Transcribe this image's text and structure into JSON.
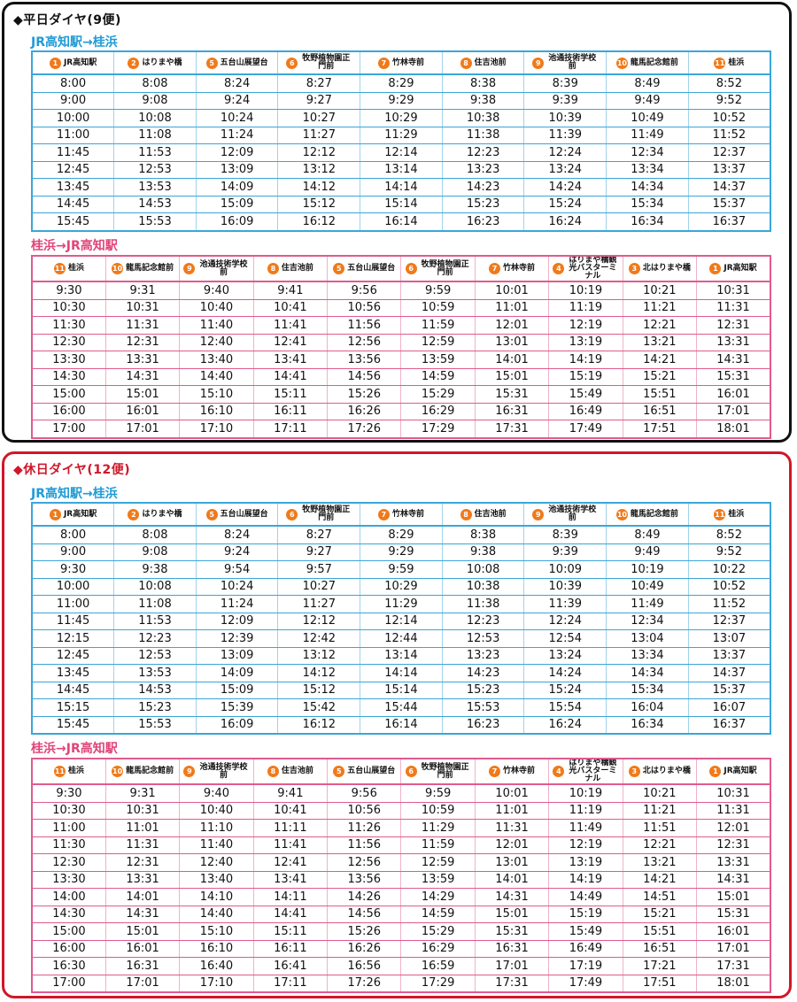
{
  "weekday": {
    "title": "◆平日ダイヤ(9便)",
    "outbound": {
      "title": "JR高知駅→桂浜",
      "stops": [
        {
          "num": "1",
          "name": "JR高知駅"
        },
        {
          "num": "2",
          "name": "はりまや橋"
        },
        {
          "num": "5",
          "name": "五台山展望台"
        },
        {
          "num": "6",
          "name": "牧野植物園正門前"
        },
        {
          "num": "7",
          "name": "竹林寺前"
        },
        {
          "num": "8",
          "name": "住吉池前"
        },
        {
          "num": "9",
          "name": "池通技術学校前"
        },
        {
          "num": "10",
          "name": "龍馬記念館前"
        },
        {
          "num": "11",
          "name": "桂浜"
        }
      ],
      "rows": [
        [
          "8:00",
          "8:08",
          "8:24",
          "8:27",
          "8:29",
          "8:38",
          "8:39",
          "8:49",
          "8:52"
        ],
        [
          "9:00",
          "9:08",
          "9:24",
          "9:27",
          "9:29",
          "9:38",
          "9:39",
          "9:49",
          "9:52"
        ],
        [
          "10:00",
          "10:08",
          "10:24",
          "10:27",
          "10:29",
          "10:38",
          "10:39",
          "10:49",
          "10:52"
        ],
        [
          "11:00",
          "11:08",
          "11:24",
          "11:27",
          "11:29",
          "11:38",
          "11:39",
          "11:49",
          "11:52"
        ],
        [
          "11:45",
          "11:53",
          "12:09",
          "12:12",
          "12:14",
          "12:23",
          "12:24",
          "12:34",
          "12:37"
        ],
        [
          "12:45",
          "12:53",
          "13:09",
          "13:12",
          "13:14",
          "13:23",
          "13:24",
          "13:34",
          "13:37"
        ],
        [
          "13:45",
          "13:53",
          "14:09",
          "14:12",
          "14:14",
          "14:23",
          "14:24",
          "14:34",
          "14:37"
        ],
        [
          "14:45",
          "14:53",
          "15:09",
          "15:12",
          "15:14",
          "15:23",
          "15:24",
          "15:34",
          "15:37"
        ],
        [
          "15:45",
          "15:53",
          "16:09",
          "16:12",
          "16:14",
          "16:23",
          "16:24",
          "16:34",
          "16:37"
        ]
      ]
    },
    "inbound": {
      "title": "桂浜→JR高知駅",
      "stops": [
        {
          "num": "11",
          "name": "桂浜"
        },
        {
          "num": "10",
          "name": "龍馬記念館前"
        },
        {
          "num": "9",
          "name": "池通技術学校前"
        },
        {
          "num": "8",
          "name": "住吉池前"
        },
        {
          "num": "5",
          "name": "五台山展望台"
        },
        {
          "num": "6",
          "name": "牧野植物園正門前"
        },
        {
          "num": "7",
          "name": "竹林寺前"
        },
        {
          "num": "4",
          "name": "はりまや橋観光バスターミナル"
        },
        {
          "num": "3",
          "name": "北はりまや橋"
        },
        {
          "num": "1",
          "name": "JR高知駅"
        }
      ],
      "rows": [
        [
          "9:30",
          "9:31",
          "9:40",
          "9:41",
          "9:56",
          "9:59",
          "10:01",
          "10:19",
          "10:21",
          "10:31"
        ],
        [
          "10:30",
          "10:31",
          "10:40",
          "10:41",
          "10:56",
          "10:59",
          "11:01",
          "11:19",
          "11:21",
          "11:31"
        ],
        [
          "11:30",
          "11:31",
          "11:40",
          "11:41",
          "11:56",
          "11:59",
          "12:01",
          "12:19",
          "12:21",
          "12:31"
        ],
        [
          "12:30",
          "12:31",
          "12:40",
          "12:41",
          "12:56",
          "12:59",
          "13:01",
          "13:19",
          "13:21",
          "13:31"
        ],
        [
          "13:30",
          "13:31",
          "13:40",
          "13:41",
          "13:56",
          "13:59",
          "14:01",
          "14:19",
          "14:21",
          "14:31"
        ],
        [
          "14:30",
          "14:31",
          "14:40",
          "14:41",
          "14:56",
          "14:59",
          "15:01",
          "15:19",
          "15:21",
          "15:31"
        ],
        [
          "15:00",
          "15:01",
          "15:10",
          "15:11",
          "15:26",
          "15:29",
          "15:31",
          "15:49",
          "15:51",
          "16:01"
        ],
        [
          "16:00",
          "16:01",
          "16:10",
          "16:11",
          "16:26",
          "16:29",
          "16:31",
          "16:49",
          "16:51",
          "17:01"
        ],
        [
          "17:00",
          "17:01",
          "17:10",
          "17:11",
          "17:26",
          "17:29",
          "17:31",
          "17:49",
          "17:51",
          "18:01"
        ]
      ]
    }
  },
  "holiday": {
    "title": "◆休日ダイヤ(12便)",
    "outbound": {
      "title": "JR高知駅→桂浜",
      "stops": [
        {
          "num": "1",
          "name": "JR高知駅"
        },
        {
          "num": "2",
          "name": "はりまや橋"
        },
        {
          "num": "5",
          "name": "五台山展望台"
        },
        {
          "num": "6",
          "name": "牧野植物園正門前"
        },
        {
          "num": "7",
          "name": "竹林寺前"
        },
        {
          "num": "8",
          "name": "住吉池前"
        },
        {
          "num": "9",
          "name": "池通技術学校前"
        },
        {
          "num": "10",
          "name": "龍馬記念館前"
        },
        {
          "num": "11",
          "name": "桂浜"
        }
      ],
      "rows": [
        [
          "8:00",
          "8:08",
          "8:24",
          "8:27",
          "8:29",
          "8:38",
          "8:39",
          "8:49",
          "8:52"
        ],
        [
          "9:00",
          "9:08",
          "9:24",
          "9:27",
          "9:29",
          "9:38",
          "9:39",
          "9:49",
          "9:52"
        ],
        [
          "9:30",
          "9:38",
          "9:54",
          "9:57",
          "9:59",
          "10:08",
          "10:09",
          "10:19",
          "10:22"
        ],
        [
          "10:00",
          "10:08",
          "10:24",
          "10:27",
          "10:29",
          "10:38",
          "10:39",
          "10:49",
          "10:52"
        ],
        [
          "11:00",
          "11:08",
          "11:24",
          "11:27",
          "11:29",
          "11:38",
          "11:39",
          "11:49",
          "11:52"
        ],
        [
          "11:45",
          "11:53",
          "12:09",
          "12:12",
          "12:14",
          "12:23",
          "12:24",
          "12:34",
          "12:37"
        ],
        [
          "12:15",
          "12:23",
          "12:39",
          "12:42",
          "12:44",
          "12:53",
          "12:54",
          "13:04",
          "13:07"
        ],
        [
          "12:45",
          "12:53",
          "13:09",
          "13:12",
          "13:14",
          "13:23",
          "13:24",
          "13:34",
          "13:37"
        ],
        [
          "13:45",
          "13:53",
          "14:09",
          "14:12",
          "14:14",
          "14:23",
          "14:24",
          "14:34",
          "14:37"
        ],
        [
          "14:45",
          "14:53",
          "15:09",
          "15:12",
          "15:14",
          "15:23",
          "15:24",
          "15:34",
          "15:37"
        ],
        [
          "15:15",
          "15:23",
          "15:39",
          "15:42",
          "15:44",
          "15:53",
          "15:54",
          "16:04",
          "16:07"
        ],
        [
          "15:45",
          "15:53",
          "16:09",
          "16:12",
          "16:14",
          "16:23",
          "16:24",
          "16:34",
          "16:37"
        ]
      ]
    },
    "inbound": {
      "title": "桂浜→JR高知駅",
      "stops": [
        {
          "num": "11",
          "name": "桂浜"
        },
        {
          "num": "10",
          "name": "龍馬記念館前"
        },
        {
          "num": "9",
          "name": "池通技術学校前"
        },
        {
          "num": "8",
          "name": "住吉池前"
        },
        {
          "num": "5",
          "name": "五台山展望台"
        },
        {
          "num": "6",
          "name": "牧野植物園正門前"
        },
        {
          "num": "7",
          "name": "竹林寺前"
        },
        {
          "num": "4",
          "name": "はりまや橋観光バスターミナル"
        },
        {
          "num": "3",
          "name": "北はりまや橋"
        },
        {
          "num": "1",
          "name": "JR高知駅"
        }
      ],
      "rows": [
        [
          "9:30",
          "9:31",
          "9:40",
          "9:41",
          "9:56",
          "9:59",
          "10:01",
          "10:19",
          "10:21",
          "10:31"
        ],
        [
          "10:30",
          "10:31",
          "10:40",
          "10:41",
          "10:56",
          "10:59",
          "11:01",
          "11:19",
          "11:21",
          "11:31"
        ],
        [
          "11:00",
          "11:01",
          "11:10",
          "11:11",
          "11:26",
          "11:29",
          "11:31",
          "11:49",
          "11:51",
          "12:01"
        ],
        [
          "11:30",
          "11:31",
          "11:40",
          "11:41",
          "11:56",
          "11:59",
          "12:01",
          "12:19",
          "12:21",
          "12:31"
        ],
        [
          "12:30",
          "12:31",
          "12:40",
          "12:41",
          "12:56",
          "12:59",
          "13:01",
          "13:19",
          "13:21",
          "13:31"
        ],
        [
          "13:30",
          "13:31",
          "13:40",
          "13:41",
          "13:56",
          "13:59",
          "14:01",
          "14:19",
          "14:21",
          "14:31"
        ],
        [
          "14:00",
          "14:01",
          "14:10",
          "14:11",
          "14:26",
          "14:29",
          "14:31",
          "14:49",
          "14:51",
          "15:01"
        ],
        [
          "14:30",
          "14:31",
          "14:40",
          "14:41",
          "14:56",
          "14:59",
          "15:01",
          "15:19",
          "15:21",
          "15:31"
        ],
        [
          "15:00",
          "15:01",
          "15:10",
          "15:11",
          "15:26",
          "15:29",
          "15:31",
          "15:49",
          "15:51",
          "16:01"
        ],
        [
          "16:00",
          "16:01",
          "16:10",
          "16:11",
          "16:26",
          "16:29",
          "16:31",
          "16:49",
          "16:51",
          "17:01"
        ],
        [
          "16:30",
          "16:31",
          "16:40",
          "16:41",
          "16:56",
          "16:59",
          "17:01",
          "17:19",
          "17:21",
          "17:31"
        ],
        [
          "17:00",
          "17:01",
          "17:10",
          "17:11",
          "17:26",
          "17:29",
          "17:31",
          "17:49",
          "17:51",
          "18:01"
        ]
      ]
    }
  }
}
